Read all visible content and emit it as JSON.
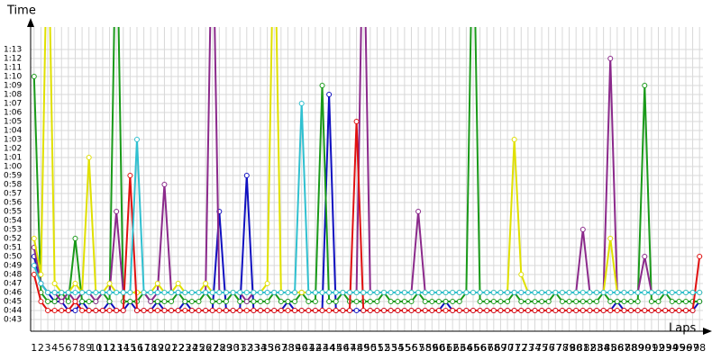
{
  "chart_data": {
    "type": "line",
    "y_label": "Time",
    "x_label": "Laps",
    "x": [
      1,
      2,
      3,
      4,
      5,
      6,
      7,
      8,
      9,
      10,
      11,
      12,
      13,
      14,
      15,
      16,
      17,
      18,
      19,
      20,
      21,
      22,
      23,
      24,
      25,
      26,
      27,
      28,
      29,
      30,
      31,
      32,
      33,
      34,
      35,
      36,
      37,
      38,
      39,
      40,
      41,
      42,
      43,
      44,
      45,
      46,
      47,
      48,
      49,
      50,
      51,
      52,
      53,
      54,
      55,
      56,
      57,
      58,
      59,
      60,
      61,
      62,
      63,
      64,
      65,
      66,
      67,
      68,
      69,
      70,
      71,
      72,
      73,
      74,
      75,
      76,
      77,
      78,
      79,
      80,
      81,
      82,
      83,
      84,
      85,
      86,
      87,
      88,
      89,
      90,
      91,
      92,
      93,
      94,
      95,
      96,
      97,
      98
    ],
    "xlim": [
      0.5,
      98.5
    ],
    "ylim": [
      42,
      75
    ],
    "grid": true,
    "yticks": [
      {
        "value": 43,
        "label": "0:43"
      },
      {
        "value": 44,
        "label": "0:44"
      },
      {
        "value": 45,
        "label": "0:45"
      },
      {
        "value": 46,
        "label": "0:46"
      },
      {
        "value": 47,
        "label": "0:47"
      },
      {
        "value": 48,
        "label": "0:48"
      },
      {
        "value": 49,
        "label": "0:49"
      },
      {
        "value": 50,
        "label": "0:50"
      },
      {
        "value": 51,
        "label": "0:51"
      },
      {
        "value": 52,
        "label": "0:52"
      },
      {
        "value": 53,
        "label": "0:53"
      },
      {
        "value": 54,
        "label": "0:54"
      },
      {
        "value": 55,
        "label": "0:55"
      },
      {
        "value": 56,
        "label": "0:56"
      },
      {
        "value": 57,
        "label": "0:57"
      },
      {
        "value": 58,
        "label": "0:58"
      },
      {
        "value": 59,
        "label": "0:59"
      },
      {
        "value": 60,
        "label": "1:00"
      },
      {
        "value": 61,
        "label": "1:01"
      },
      {
        "value": 62,
        "label": "1:02"
      },
      {
        "value": 63,
        "label": "1:03"
      },
      {
        "value": 64,
        "label": "1:04"
      },
      {
        "value": 65,
        "label": "1:05"
      },
      {
        "value": 66,
        "label": "1:06"
      },
      {
        "value": 67,
        "label": "1:07"
      },
      {
        "value": 68,
        "label": "1:08"
      },
      {
        "value": 69,
        "label": "1:09"
      },
      {
        "value": 70,
        "label": "1:10"
      },
      {
        "value": 71,
        "label": "1:11"
      },
      {
        "value": 72,
        "label": "1:12"
      },
      {
        "value": 73,
        "label": "1:13"
      }
    ],
    "series": [
      {
        "color": "#1010c0",
        "values": [
          50,
          47,
          46,
          45,
          45,
          44,
          44,
          45,
          44,
          44,
          44,
          45,
          44,
          44,
          45,
          44,
          44,
          44,
          45,
          44,
          44,
          44,
          45,
          44,
          44,
          44,
          44,
          55,
          44,
          44,
          44,
          59,
          44,
          44,
          44,
          44,
          44,
          45,
          44,
          44,
          44,
          44,
          44,
          68,
          44,
          44,
          44,
          44,
          44,
          44,
          44,
          44,
          44,
          44,
          44,
          44,
          44,
          44,
          44,
          44,
          45,
          44,
          44,
          44,
          44,
          44,
          44,
          44,
          44,
          44,
          44,
          44,
          44,
          44,
          44,
          44,
          44,
          44,
          44,
          44,
          44,
          44,
          44,
          44,
          44,
          45,
          44,
          44,
          44,
          44,
          44,
          44,
          44,
          44,
          44,
          44,
          44,
          45
        ]
      },
      {
        "color": "#1a9a1a",
        "values": [
          70,
          46,
          45,
          45,
          46,
          45,
          52,
          45,
          45,
          45,
          46,
          45,
          90,
          45,
          45,
          45,
          46,
          45,
          45,
          45,
          45,
          46,
          45,
          45,
          45,
          46,
          45,
          45,
          45,
          46,
          45,
          45,
          45,
          45,
          45,
          46,
          45,
          45,
          45,
          46,
          45,
          45,
          69,
          45,
          45,
          46,
          45,
          45,
          45,
          45,
          45,
          46,
          45,
          45,
          45,
          45,
          46,
          45,
          45,
          45,
          45,
          45,
          45,
          46,
          90,
          45,
          45,
          45,
          45,
          45,
          46,
          45,
          45,
          45,
          45,
          45,
          46,
          45,
          45,
          45,
          45,
          45,
          45,
          46,
          45,
          45,
          45,
          45,
          45,
          69,
          45,
          45,
          46,
          45,
          45,
          45,
          45,
          45
        ]
      },
      {
        "color": "#8b2a8b",
        "values": [
          51,
          47,
          46,
          46,
          45,
          46,
          45,
          46,
          46,
          45,
          46,
          46,
          55,
          46,
          46,
          46,
          46,
          45,
          46,
          58,
          46,
          46,
          46,
          46,
          46,
          46,
          90,
          46,
          46,
          46,
          46,
          45,
          46,
          46,
          46,
          46,
          46,
          46,
          46,
          46,
          46,
          46,
          46,
          46,
          46,
          46,
          46,
          46,
          90,
          46,
          46,
          46,
          46,
          46,
          46,
          46,
          55,
          46,
          46,
          46,
          46,
          46,
          46,
          46,
          46,
          46,
          46,
          46,
          46,
          46,
          46,
          46,
          46,
          46,
          46,
          46,
          46,
          46,
          46,
          46,
          53,
          46,
          46,
          46,
          72,
          46,
          46,
          46,
          46,
          50,
          46,
          46,
          46,
          46,
          46,
          46,
          46,
          46
        ]
      },
      {
        "color": "#e0e000",
        "values": [
          52,
          48,
          90,
          47,
          46,
          46,
          47,
          46,
          61,
          46,
          46,
          47,
          46,
          46,
          46,
          46,
          46,
          46,
          47,
          46,
          46,
          47,
          46,
          46,
          46,
          47,
          46,
          46,
          46,
          46,
          46,
          46,
          46,
          46,
          47,
          90,
          46,
          46,
          46,
          46,
          46,
          46,
          46,
          46,
          46,
          46,
          46,
          46,
          46,
          46,
          46,
          46,
          46,
          46,
          46,
          46,
          46,
          46,
          46,
          46,
          46,
          46,
          46,
          46,
          46,
          46,
          46,
          46,
          46,
          46,
          63,
          48,
          46,
          46,
          46,
          46,
          46,
          46,
          46,
          46,
          46,
          46,
          46,
          46,
          52,
          46,
          46,
          46,
          46,
          46,
          46,
          46,
          46,
          46,
          46,
          46,
          46,
          46
        ]
      },
      {
        "color": "#e01010",
        "values": [
          48,
          45,
          44,
          44,
          44,
          44,
          45,
          44,
          44,
          44,
          44,
          44,
          44,
          44,
          59,
          44,
          44,
          44,
          44,
          44,
          44,
          44,
          44,
          44,
          44,
          44,
          44,
          44,
          44,
          44,
          44,
          44,
          44,
          44,
          44,
          44,
          44,
          44,
          44,
          44,
          44,
          44,
          44,
          44,
          44,
          44,
          44,
          65,
          44,
          44,
          44,
          44,
          44,
          44,
          44,
          44,
          44,
          44,
          44,
          44,
          44,
          44,
          44,
          44,
          44,
          44,
          44,
          44,
          44,
          44,
          44,
          44,
          44,
          44,
          44,
          44,
          44,
          44,
          44,
          44,
          44,
          44,
          44,
          44,
          44,
          44,
          44,
          44,
          44,
          44,
          44,
          44,
          44,
          44,
          44,
          44,
          44,
          50
        ]
      },
      {
        "color": "#30c0d0",
        "values": [
          49,
          47,
          46,
          46,
          46,
          46,
          46,
          46,
          46,
          46,
          46,
          46,
          46,
          46,
          46,
          63,
          46,
          46,
          46,
          46,
          46,
          46,
          46,
          46,
          46,
          46,
          46,
          46,
          46,
          46,
          46,
          46,
          46,
          46,
          46,
          46,
          46,
          46,
          46,
          67,
          46,
          46,
          46,
          46,
          46,
          46,
          46,
          46,
          46,
          46,
          46,
          46,
          46,
          46,
          46,
          46,
          46,
          46,
          46,
          46,
          46,
          46,
          46,
          46,
          46,
          46,
          46,
          46,
          46,
          46,
          46,
          46,
          46,
          46,
          46,
          46,
          46,
          46,
          46,
          46,
          46,
          46,
          46,
          46,
          46,
          46,
          46,
          46,
          46,
          46,
          46,
          46,
          46,
          46,
          46,
          46,
          46,
          46
        ]
      }
    ]
  }
}
